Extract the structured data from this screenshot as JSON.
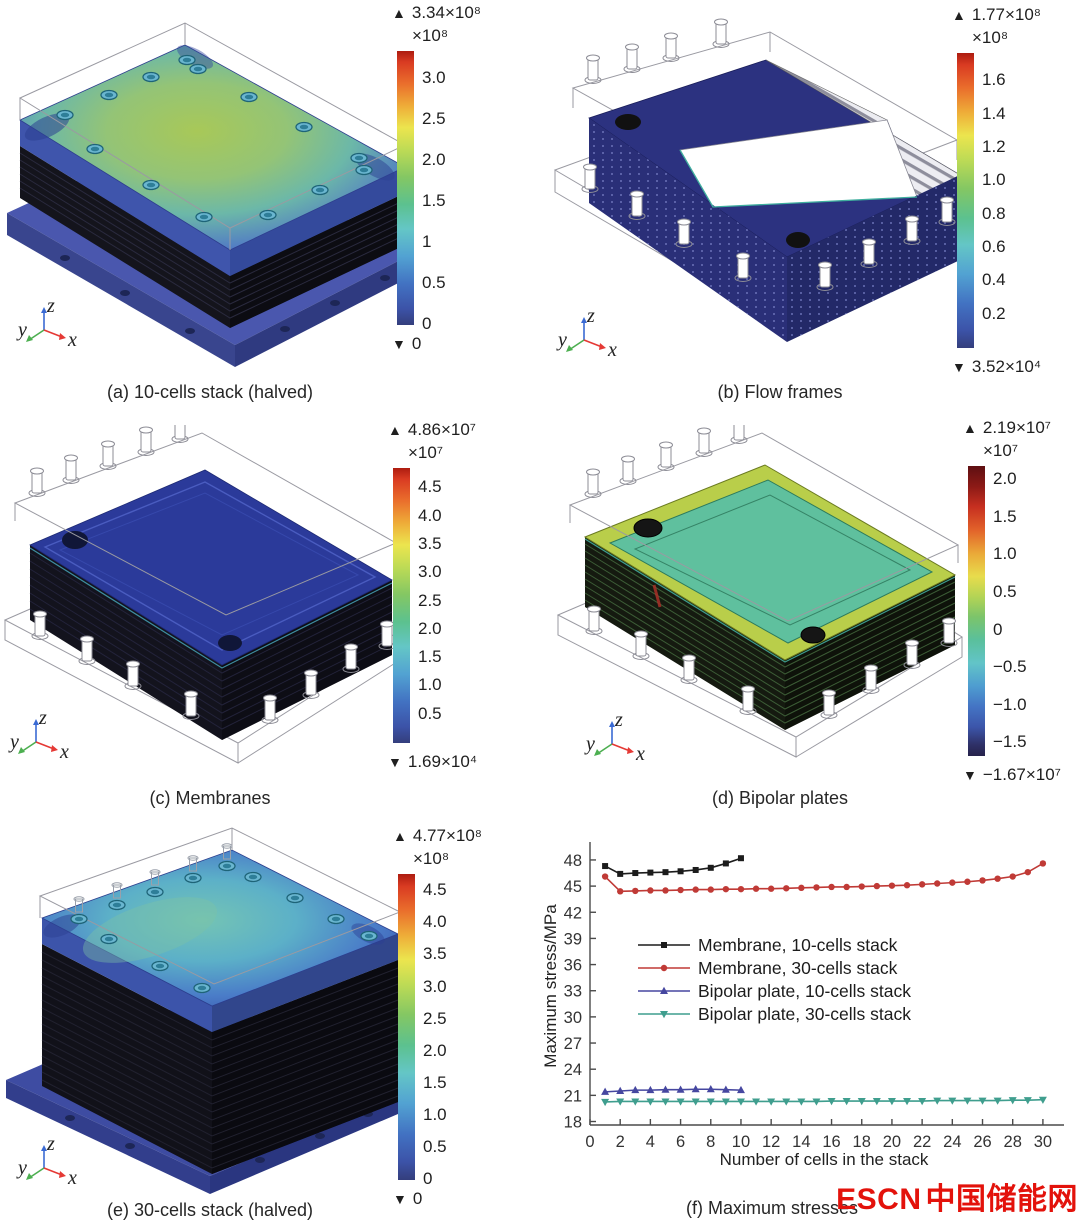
{
  "icons": {
    "up_triangle": "▲",
    "down_triangle": "▼"
  },
  "figure": {
    "triad_labels": {
      "x": "x",
      "y": "y",
      "z": "z"
    },
    "panels": [
      {
        "id": "a",
        "caption": "(a) 10-cells stack (halved)",
        "colorbar": {
          "max_label": "3.34×10⁸",
          "unit": "×10⁸",
          "min_label": "0",
          "range": [
            0,
            3.34
          ],
          "ticks": [
            {
              "v": 3.0,
              "label": "3.0"
            },
            {
              "v": 2.5,
              "label": "2.5"
            },
            {
              "v": 2.0,
              "label": "2.0"
            },
            {
              "v": 1.5,
              "label": "1.5"
            },
            {
              "v": 1.0,
              "label": "1"
            },
            {
              "v": 0.5,
              "label": "0.5"
            },
            {
              "v": 0,
              "label": "0"
            }
          ]
        }
      },
      {
        "id": "b",
        "caption": "(b) Flow frames",
        "colorbar": {
          "max_label": "1.77×10⁸",
          "unit": "×10⁸",
          "min_label": "3.52×10⁴",
          "range": [
            0,
            1.77
          ],
          "ticks": [
            {
              "v": 1.6,
              "label": "1.6"
            },
            {
              "v": 1.4,
              "label": "1.4"
            },
            {
              "v": 1.2,
              "label": "1.2"
            },
            {
              "v": 1.0,
              "label": "1.0"
            },
            {
              "v": 0.8,
              "label": "0.8"
            },
            {
              "v": 0.6,
              "label": "0.6"
            },
            {
              "v": 0.4,
              "label": "0.4"
            },
            {
              "v": 0.2,
              "label": "0.2"
            }
          ]
        }
      },
      {
        "id": "c",
        "caption": "(c) Membranes",
        "colorbar": {
          "max_label": "4.86×10⁷",
          "unit": "×10⁷",
          "min_label": "1.69×10⁴",
          "range": [
            0,
            4.86
          ],
          "ticks": [
            {
              "v": 4.5,
              "label": "4.5"
            },
            {
              "v": 4.0,
              "label": "4.0"
            },
            {
              "v": 3.5,
              "label": "3.5"
            },
            {
              "v": 3.0,
              "label": "3.0"
            },
            {
              "v": 2.5,
              "label": "2.5"
            },
            {
              "v": 2.0,
              "label": "2.0"
            },
            {
              "v": 1.5,
              "label": "1.5"
            },
            {
              "v": 1.0,
              "label": "1.0"
            },
            {
              "v": 0.5,
              "label": "0.5"
            }
          ]
        }
      },
      {
        "id": "d",
        "caption": "(d) Bipolar plates",
        "colorbar": {
          "max_label": "2.19×10⁷",
          "unit": "×10⁷",
          "min_label": "−1.67×10⁷",
          "range": [
            -1.67,
            2.19
          ],
          "ticks": [
            {
              "v": 2.0,
              "label": "2.0"
            },
            {
              "v": 1.5,
              "label": "1.5"
            },
            {
              "v": 1.0,
              "label": "1.0"
            },
            {
              "v": 0.5,
              "label": "0.5"
            },
            {
              "v": 0,
              "label": "0"
            },
            {
              "v": -0.5,
              "label": "−0.5"
            },
            {
              "v": -1.0,
              "label": "−1.0"
            },
            {
              "v": -1.5,
              "label": "−1.5"
            }
          ]
        }
      },
      {
        "id": "e",
        "caption": "(e) 30-cells stack (halved)",
        "colorbar": {
          "max_label": "4.77×10⁸",
          "unit": "×10⁸",
          "min_label": "0",
          "range": [
            0,
            4.77
          ],
          "ticks": [
            {
              "v": 4.5,
              "label": "4.5"
            },
            {
              "v": 4.0,
              "label": "4.0"
            },
            {
              "v": 3.5,
              "label": "3.5"
            },
            {
              "v": 3.0,
              "label": "3.0"
            },
            {
              "v": 2.5,
              "label": "2.5"
            },
            {
              "v": 2.0,
              "label": "2.0"
            },
            {
              "v": 1.5,
              "label": "1.5"
            },
            {
              "v": 1.0,
              "label": "1.0"
            },
            {
              "v": 0.5,
              "label": "0.5"
            },
            {
              "v": 0,
              "label": "0"
            }
          ]
        }
      },
      {
        "id": "f",
        "caption": "(f) Maximum stresses"
      }
    ]
  },
  "chart_data": {
    "type": "line",
    "title": "",
    "xlabel": "Number of cells in the stack",
    "ylabel": "Maximum stress/MPa",
    "xlim": [
      0,
      31
    ],
    "ylim": [
      17.6,
      49.6
    ],
    "xticks": [
      0,
      2,
      4,
      6,
      8,
      10,
      12,
      14,
      16,
      18,
      20,
      22,
      24,
      26,
      28,
      30
    ],
    "yticks": [
      18,
      21,
      24,
      27,
      30,
      33,
      36,
      39,
      42,
      45,
      48
    ],
    "grid": false,
    "legend_position": "inside-right-middle",
    "series": [
      {
        "name": "Membrane, 10-cells stack",
        "color": "#1c1c1c",
        "marker": "square",
        "x": [
          1,
          2,
          3,
          4,
          5,
          6,
          7,
          8,
          9,
          10
        ],
        "y": [
          47.3,
          46.4,
          46.5,
          46.55,
          46.6,
          46.7,
          46.85,
          47.1,
          47.6,
          48.2
        ]
      },
      {
        "name": "Membrane, 30-cells stack",
        "color": "#c03a36",
        "marker": "circle",
        "x": [
          1,
          2,
          3,
          4,
          5,
          6,
          7,
          8,
          9,
          10,
          11,
          12,
          13,
          14,
          15,
          16,
          17,
          18,
          19,
          20,
          21,
          22,
          23,
          24,
          25,
          26,
          27,
          28,
          29,
          30
        ],
        "y": [
          46.1,
          44.4,
          44.45,
          44.5,
          44.5,
          44.55,
          44.6,
          44.6,
          44.65,
          44.65,
          44.7,
          44.7,
          44.75,
          44.8,
          44.85,
          44.9,
          44.9,
          44.95,
          45.0,
          45.05,
          45.1,
          45.2,
          45.3,
          45.4,
          45.5,
          45.65,
          45.85,
          46.1,
          46.6,
          47.6
        ]
      },
      {
        "name": "Bipolar plate, 10-cells stack",
        "color": "#4647a0",
        "marker": "triangle-up",
        "x": [
          1,
          2,
          3,
          4,
          5,
          6,
          7,
          8,
          9,
          10
        ],
        "y": [
          21.4,
          21.5,
          21.6,
          21.6,
          21.65,
          21.65,
          21.7,
          21.7,
          21.65,
          21.6
        ]
      },
      {
        "name": "Bipolar plate, 30-cells stack",
        "color": "#3f9e8e",
        "marker": "triangle-down",
        "x": [
          1,
          2,
          3,
          4,
          5,
          6,
          7,
          8,
          9,
          10,
          11,
          12,
          13,
          14,
          15,
          16,
          17,
          18,
          19,
          20,
          21,
          22,
          23,
          24,
          25,
          26,
          27,
          28,
          29,
          30
        ],
        "y": [
          20.25,
          20.3,
          20.3,
          20.3,
          20.3,
          20.3,
          20.3,
          20.3,
          20.3,
          20.3,
          20.3,
          20.3,
          20.3,
          20.3,
          20.3,
          20.35,
          20.35,
          20.35,
          20.35,
          20.35,
          20.35,
          20.35,
          20.4,
          20.4,
          20.4,
          20.4,
          20.4,
          20.45,
          20.45,
          20.5
        ]
      }
    ]
  },
  "watermark": {
    "brand_en": "ESCN",
    "brand_cn": "中国储能网",
    "color": "#e3120b"
  }
}
